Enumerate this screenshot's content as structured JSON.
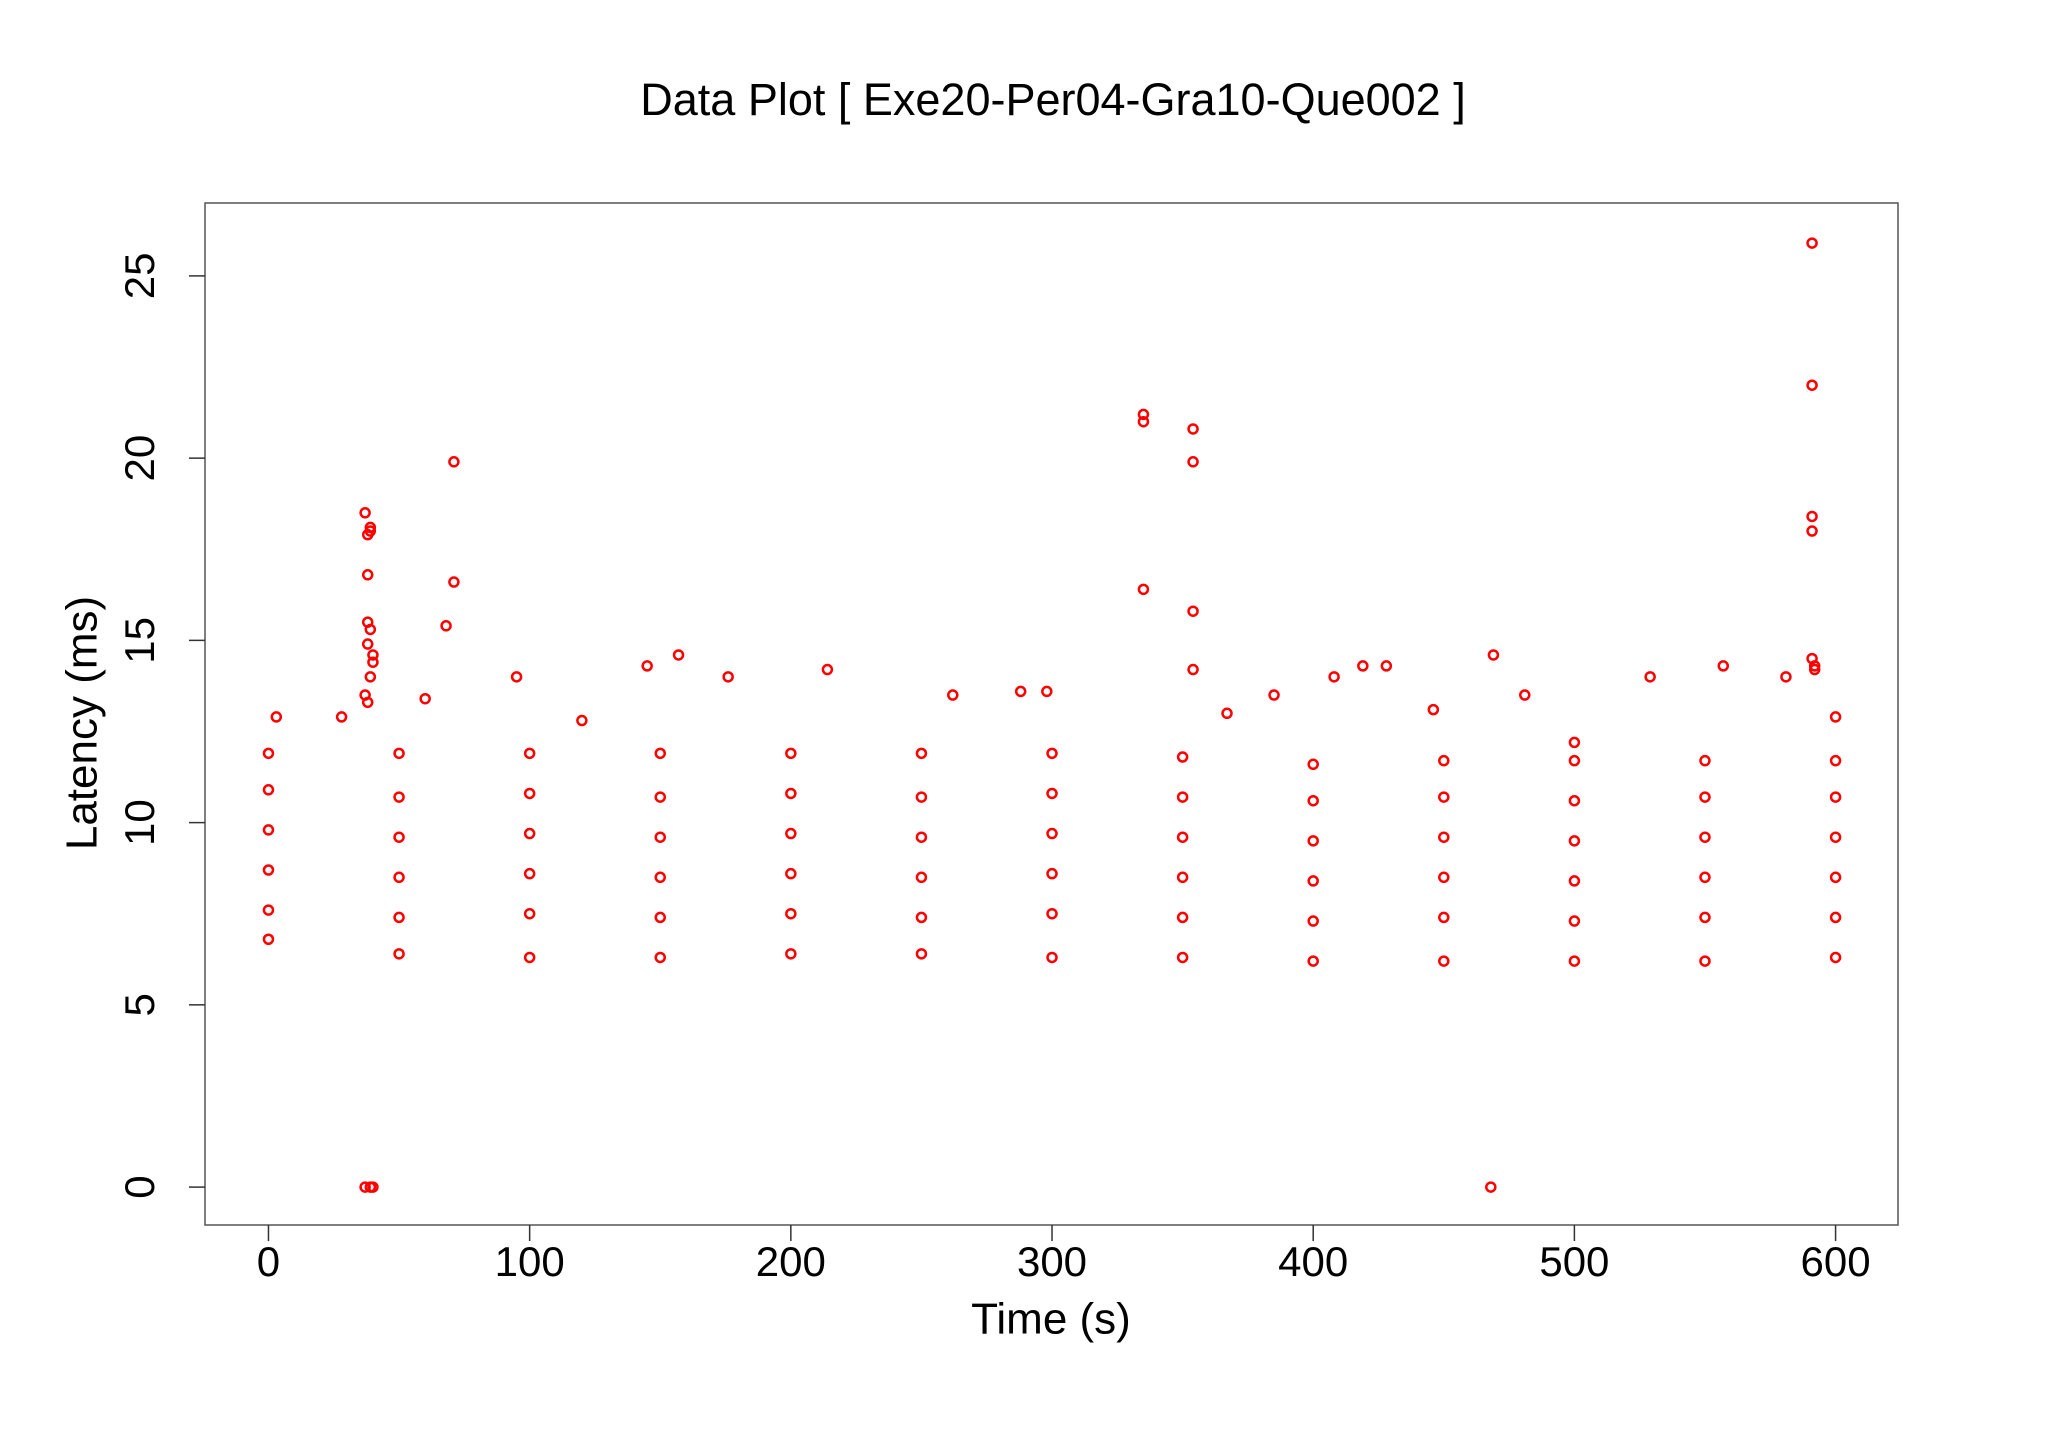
{
  "chart_data": {
    "type": "scatter",
    "title": "Data Plot [ Exe20-Per04-Gra10-Que002 ]",
    "x_label": "Time (s)",
    "y_label": "Latency (ms)",
    "color": "#ff0000",
    "xlim": [
      -24.3,
      623.9
    ],
    "ylim": [
      -1.04,
      27.0
    ],
    "xticks": [
      0,
      100,
      200,
      300,
      400,
      500,
      600
    ],
    "yticks": [
      0,
      5,
      10,
      15,
      20,
      25
    ],
    "x": [
      0,
      0,
      0,
      0,
      0,
      0,
      50,
      50,
      50,
      50,
      50,
      50,
      100,
      100,
      100,
      100,
      100,
      100,
      150,
      150,
      150,
      150,
      150,
      150,
      200,
      200,
      200,
      200,
      200,
      200,
      250,
      250,
      250,
      250,
      250,
      250,
      300,
      300,
      300,
      300,
      300,
      300,
      350,
      350,
      350,
      350,
      350,
      350,
      400,
      400,
      400,
      400,
      400,
      400,
      450,
      450,
      450,
      450,
      450,
      450,
      500,
      500,
      500,
      500,
      500,
      500,
      550,
      550,
      550,
      550,
      550,
      550,
      600,
      600,
      600,
      600,
      600,
      600,
      37,
      38,
      39,
      39,
      38,
      38,
      39,
      38,
      40,
      40,
      39,
      37,
      38,
      37,
      39,
      40,
      71,
      71,
      68,
      335,
      335,
      335,
      354,
      354,
      354,
      354,
      468,
      469,
      591,
      591,
      591,
      591,
      591,
      592,
      592,
      157,
      145,
      214,
      176,
      95,
      408,
      419,
      428,
      529,
      557,
      581,
      288,
      298,
      262,
      481,
      385,
      3,
      28,
      60,
      120,
      367,
      600,
      446,
      500
    ],
    "values": [
      6.8,
      7.6,
      8.7,
      9.8,
      10.9,
      11.9,
      6.4,
      7.4,
      8.5,
      9.6,
      10.7,
      11.9,
      6.3,
      7.5,
      8.6,
      9.7,
      10.8,
      11.9,
      6.3,
      7.4,
      8.5,
      9.6,
      10.7,
      11.9,
      6.4,
      7.5,
      8.6,
      9.7,
      10.8,
      11.9,
      6.4,
      7.4,
      8.5,
      9.6,
      10.7,
      11.9,
      6.3,
      7.5,
      8.6,
      9.7,
      10.8,
      11.9,
      6.3,
      7.4,
      8.5,
      9.6,
      10.7,
      11.8,
      6.2,
      7.3,
      8.4,
      9.5,
      10.6,
      11.6,
      6.2,
      7.4,
      8.5,
      9.6,
      10.7,
      11.7,
      6.2,
      7.3,
      8.4,
      9.5,
      10.6,
      11.7,
      6.2,
      7.4,
      8.5,
      9.6,
      10.7,
      11.7,
      6.3,
      7.4,
      8.5,
      9.6,
      10.7,
      11.7,
      18.5,
      17.9,
      18.1,
      18.0,
      16.8,
      15.5,
      15.3,
      14.9,
      14.6,
      14.4,
      14.0,
      13.5,
      13.3,
      0,
      0,
      0,
      19.9,
      16.6,
      15.4,
      21.2,
      21.0,
      16.4,
      20.8,
      19.9,
      15.8,
      14.2,
      0,
      14.6,
      25.9,
      22.0,
      18.4,
      18.0,
      14.5,
      14.3,
      14.2,
      14.6,
      14.3,
      14.2,
      14.0,
      14.0,
      14.0,
      14.3,
      14.3,
      14.0,
      14.3,
      14.0,
      13.6,
      13.6,
      13.5,
      13.5,
      13.5,
      12.9,
      12.9,
      13.4,
      12.8,
      13.0,
      12.9,
      13.1,
      12.2
    ]
  }
}
